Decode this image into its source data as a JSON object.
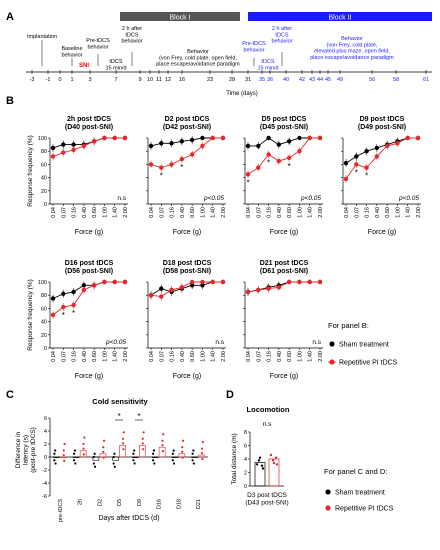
{
  "panel_a": {
    "letter": "A",
    "block1_label": "Block I",
    "block2_label": "Block II",
    "timeline_ticks": [
      "-3",
      "-1",
      "0",
      "1",
      "3",
      "7",
      "9",
      "10",
      "11",
      "12",
      "16",
      "23",
      "28",
      "31",
      "35",
      "36",
      "40",
      "42",
      "43",
      "44",
      "45",
      "49",
      "56",
      "58",
      "61"
    ],
    "axis_title": "Time (days)",
    "labels": {
      "implantation": "Implantation",
      "baseline": "Baseline\nbehavior",
      "pre_tdcs_1": "Pre-tDCS\nbehavior",
      "sni": "SNI",
      "tdcs_1": "tDCS\n15 min/d",
      "post_2h_1": "2 h after\ntDCS\nbehavior",
      "behavior_1": "Behavior\n(von Frey, cold plate, open field,\nplace escape/avoidance paradigm",
      "pre_tdcs_2": "Pre-tDCS\nbehavior",
      "tdcs_2": "tDCS\n15 min/d",
      "post_2h_2": "2 h after\ntDCS\nbehavior",
      "behavior_2": "Behavior\n(von Frey, cold plate,\nelevated plus maze, open field,\nplace escape/avoidance paradigm"
    },
    "colors": {
      "block1": "#555555",
      "block2": "#1a1aff",
      "sni": "#ff0000"
    }
  },
  "panel_b": {
    "letter": "B",
    "ylabel": "Response frequency (%)",
    "xlabel": "Force (g)",
    "side_title": "For panel B:",
    "legend": [
      "Sham treatment",
      "Repetitive PI tDCS"
    ]
  },
  "panel_c": {
    "letter": "C",
    "title": "Cold sensitivity",
    "ylabel": "Difference in\nlatency (s)\n(post-pre tDCS)",
    "xlabel": "Days after tDCS (d)"
  },
  "panel_d": {
    "letter": "D",
    "title": "Locomotion",
    "ylabel": "Total distance (m)",
    "xlabel": "D3 post tDCS\n(D43 post-SNI)",
    "sig": "n.s"
  },
  "side_cd": {
    "title": "For panel C and D:",
    "legend": [
      "Sham treatment",
      "Repetitive PI tDCS"
    ]
  },
  "chart_data": [
    {
      "type": "line",
      "title": "2h post tDCS\n(D40 post-SNI)",
      "xlabel": "Force (g)",
      "ylabel": "Response frequency (%)",
      "categories": [
        "0.04",
        "0.07",
        "0.16",
        "0.40",
        "0.60",
        "1.00",
        "1.40",
        "2.00"
      ],
      "ylim": [
        0,
        100
      ],
      "yticks": [
        0,
        20,
        40,
        60,
        80,
        100
      ],
      "sig_text": "n.s",
      "stars": [],
      "series": [
        {
          "name": "Sham treatment",
          "values": [
            85,
            90,
            90,
            90,
            95,
            100,
            100,
            100
          ]
        },
        {
          "name": "Repetitive PI tDCS",
          "values": [
            72,
            78,
            82,
            88,
            95,
            100,
            100,
            100
          ]
        }
      ]
    },
    {
      "type": "line",
      "title": "D2 post tDCS\n(D42 post-SNI)",
      "xlabel": "Force (g)",
      "ylabel": "Response frequency (%)",
      "categories": [
        "0.04",
        "0.07",
        "0.16",
        "0.40",
        "0.60",
        "1.00",
        "1.40",
        "2.00"
      ],
      "ylim": [
        0,
        100
      ],
      "yticks": [
        0,
        20,
        40,
        60,
        80,
        100
      ],
      "sig_text": "p<0.05",
      "stars": [
        1,
        3
      ],
      "series": [
        {
          "name": "Sham treatment",
          "values": [
            88,
            92,
            92,
            95,
            97,
            100,
            100,
            100
          ]
        },
        {
          "name": "Repetitive PI tDCS",
          "values": [
            60,
            55,
            60,
            68,
            75,
            88,
            100,
            100
          ]
        }
      ]
    },
    {
      "type": "line",
      "title": "D5 post tDCS\n(D45 post-SNI)",
      "xlabel": "Force (g)",
      "ylabel": "Response frequency (%)",
      "categories": [
        "0.04",
        "0.07",
        "0.16",
        "0.40",
        "0.60",
        "1.00",
        "1.40",
        "2.00"
      ],
      "ylim": [
        0,
        100
      ],
      "yticks": [
        0,
        20,
        40,
        60,
        80,
        100
      ],
      "sig_text": "p<0.05",
      "stars": [
        0,
        2,
        4
      ],
      "series": [
        {
          "name": "Sham treatment",
          "values": [
            88,
            88,
            100,
            90,
            95,
            100,
            100,
            100
          ]
        },
        {
          "name": "Repetitive PI tDCS",
          "values": [
            45,
            55,
            75,
            65,
            70,
            80,
            100,
            100
          ]
        }
      ]
    },
    {
      "type": "line",
      "title": "D9 post tDCS\n(D49 post-SNI)",
      "xlabel": "Force (g)",
      "ylabel": "Response frequency (%)",
      "categories": [
        "0.04",
        "0.07",
        "0.16",
        "0.40",
        "0.60",
        "1.00",
        "1.40",
        "2.00"
      ],
      "ylim": [
        0,
        100
      ],
      "yticks": [
        0,
        20,
        40,
        60,
        80,
        100
      ],
      "sig_text": "p<0.05",
      "stars": [
        1,
        2
      ],
      "series": [
        {
          "name": "Sham treatment",
          "values": [
            62,
            72,
            80,
            85,
            90,
            95,
            100,
            100
          ]
        },
        {
          "name": "Repetitive PI tDCS",
          "values": [
            38,
            60,
            55,
            72,
            88,
            92,
            100,
            100
          ]
        }
      ]
    },
    {
      "type": "line",
      "title": "D16 post tDCS\n(D56 post-SNI)",
      "xlabel": "Force (g)",
      "ylabel": "Response frequency (%)",
      "categories": [
        "0.04",
        "0.07",
        "0.16",
        "0.40",
        "0.60",
        "1.00",
        "1.40",
        "2.00"
      ],
      "ylim": [
        0,
        100
      ],
      "yticks": [
        0,
        20,
        40,
        60,
        80,
        100
      ],
      "sig_text": "p<0.05",
      "stars": [
        1,
        2
      ],
      "series": [
        {
          "name": "Sham treatment",
          "values": [
            75,
            82,
            85,
            95,
            95,
            100,
            100,
            100
          ]
        },
        {
          "name": "Repetitive PI tDCS",
          "values": [
            50,
            62,
            65,
            88,
            95,
            100,
            100,
            100
          ]
        }
      ]
    },
    {
      "type": "line",
      "title": "D18 post tDCS\n(D58 post-SNI)",
      "xlabel": "Force (g)",
      "ylabel": "Response frequency (%)",
      "categories": [
        "0.04",
        "0.07",
        "0.16",
        "0.40",
        "0.60",
        "1.00",
        "1.40",
        "2.00"
      ],
      "ylim": [
        0,
        100
      ],
      "yticks": [
        0,
        20,
        40,
        60,
        80,
        100
      ],
      "sig_text": "n.s",
      "stars": [],
      "series": [
        {
          "name": "Sham treatment",
          "values": [
            80,
            90,
            85,
            90,
            95,
            95,
            100,
            100
          ]
        },
        {
          "name": "Repetitive PI tDCS",
          "values": [
            80,
            78,
            88,
            92,
            100,
            100,
            100,
            100
          ]
        }
      ]
    },
    {
      "type": "line",
      "title": "D21 post tDCS\n(D61 post-SNI)",
      "xlabel": "Force (g)",
      "ylabel": "Response frequency (%)",
      "categories": [
        "0.04",
        "0.07",
        "0.16",
        "0.40",
        "0.60",
        "1.00",
        "1.40",
        "2.00"
      ],
      "ylim": [
        0,
        100
      ],
      "yticks": [
        0,
        20,
        40,
        60,
        80,
        100
      ],
      "sig_text": "n.s",
      "stars": [],
      "series": [
        {
          "name": "Sham treatment",
          "values": [
            85,
            88,
            92,
            95,
            100,
            100,
            100,
            100
          ]
        },
        {
          "name": "Repetitive PI tDCS",
          "values": [
            85,
            88,
            90,
            92,
            100,
            100,
            100,
            100
          ]
        }
      ]
    },
    {
      "type": "bar",
      "title": "Cold sensitivity",
      "xlabel": "Days after tDCS (d)",
      "ylabel": "Difference in latency (s) (post-pre tDCS)",
      "categories": [
        "pre-tDCS",
        "2h",
        "D2",
        "D5",
        "D9",
        "D16",
        "D18",
        "D21"
      ],
      "ylim": [
        -6,
        6
      ],
      "yticks": [
        -6,
        -4,
        -2,
        0,
        2,
        4,
        6
      ],
      "stars": [
        3,
        4
      ],
      "series": [
        {
          "name": "Sham treatment",
          "values": [
            0,
            0,
            -0.5,
            -0.5,
            0,
            0,
            0,
            0
          ]
        },
        {
          "name": "Repetitive PI tDCS",
          "values": [
            0,
            1,
            0.5,
            1.8,
            1.8,
            1.5,
            0.5,
            0.3
          ]
        }
      ]
    },
    {
      "type": "bar",
      "title": "Locomotion",
      "xlabel": "D3 post tDCS (D43 post-SNI)",
      "ylabel": "Total distance (m)",
      "categories": [
        "D3 post tDCS"
      ],
      "ylim": [
        0,
        8
      ],
      "yticks": [
        0,
        2,
        4,
        6,
        8
      ],
      "sig_text": "n.s",
      "series": [
        {
          "name": "Sham treatment",
          "values": [
            3.5
          ]
        },
        {
          "name": "Repetitive PI tDCS",
          "values": [
            4
          ]
        }
      ]
    }
  ]
}
